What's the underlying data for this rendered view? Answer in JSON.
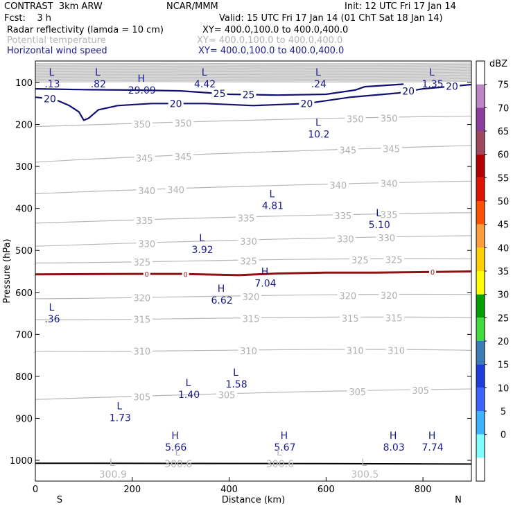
{
  "header": {
    "model": "CONTRAST  3km ARW",
    "org": "NCAR/MMM",
    "init": "Init: 12 UTC Fri 17 Jan 14",
    "fcst": "Fcst:    3 h",
    "valid": "Valid: 15 UTC Fri 17 Jan 14 (01 ChT Sat 18 Jan 14)",
    "fields": [
      {
        "name": "Radar reflectivity (lamda = 10 cm)",
        "xy": "XY= 400.0,100.0 to 400.0,400.0",
        "color": "#000000"
      },
      {
        "name": "Potential temperature",
        "xy": "XY= 400.0,100.0 to 400.0,400.0",
        "color": "#b4b4b4"
      },
      {
        "name": "Horizontal wind speed",
        "xy": "XY= 400.0,100.0 to 400.0,400.0",
        "color": "#1a1a8c"
      }
    ]
  },
  "chart_data": {
    "type": "cross-section",
    "xlabel": "Distance (km)",
    "ylabel": "Pressure (hPa)",
    "xlim": [
      0,
      900
    ],
    "ylim": [
      1050,
      50
    ],
    "x_ticks": [
      0,
      200,
      400,
      600,
      800
    ],
    "y_ticks": [
      100,
      200,
      300,
      400,
      500,
      600,
      700,
      800,
      900,
      1000
    ],
    "x_end_labels": {
      "left": "S",
      "right": "N"
    },
    "colorbar": {
      "unit": "dBZ",
      "levels": [
        "75",
        "70",
        "65",
        "60",
        "55",
        "50",
        "45",
        "40",
        "35",
        "30",
        "25",
        "20",
        "15",
        "10",
        "5",
        "0"
      ],
      "colors": [
        "#ffffff",
        "#c084c8",
        "#8c3c9c",
        "#a0485c",
        "#b40000",
        "#dc1400",
        "#ff5000",
        "#ff9c3c",
        "#ffd000",
        "#ffff00",
        "#00a000",
        "#40dc40",
        "#3c7cb4",
        "#1e3cdc",
        "#3c64ff",
        "#3cb4ff",
        "#80ffff",
        "#ffffff"
      ]
    },
    "theta_contours": [
      {
        "label": "350",
        "p_left": 205,
        "p_right": 180,
        "label_x": [
          220,
          305,
          660,
          730
        ]
      },
      {
        "label": "345",
        "p_left": 290,
        "p_right": 250,
        "label_x": [
          225,
          305,
          645,
          735
        ]
      },
      {
        "label": "340",
        "p_left": 365,
        "p_right": 335,
        "label_x": [
          230,
          290,
          625,
          730
        ]
      },
      {
        "label": "335",
        "p_left": 435,
        "p_right": 410,
        "label_x": [
          225,
          435,
          635,
          730
        ]
      },
      {
        "label": "330",
        "p_left": 490,
        "p_right": 465,
        "label_x": [
          230,
          440,
          640,
          725
        ]
      },
      {
        "label": "325",
        "p_left": 530,
        "p_right": 520,
        "label_x": [
          220,
          440,
          670,
          740
        ]
      },
      {
        "label": "320",
        "p_left": 615,
        "p_right": 605,
        "label_x": [
          220,
          445,
          645,
          730
        ]
      },
      {
        "label": "315",
        "p_left": 665,
        "p_right": 660,
        "label_x": [
          220,
          445,
          650,
          740
        ]
      },
      {
        "label": "310",
        "p_left": 740,
        "p_right": 738,
        "label_x": [
          220,
          440,
          660,
          745
        ]
      },
      {
        "label": "305",
        "p_left": 855,
        "p_right": 830,
        "label_x": [
          220,
          395,
          665,
          795
        ]
      }
    ],
    "freezing_level": {
      "label": "0",
      "points": [
        [
          0,
          557
        ],
        [
          200,
          556
        ],
        [
          300,
          556
        ],
        [
          420,
          559
        ],
        [
          500,
          555
        ],
        [
          600,
          553
        ],
        [
          700,
          553
        ],
        [
          900,
          550
        ]
      ],
      "label_x": [
        230,
        310,
        820
      ],
      "color": "#8c1414"
    },
    "ground_line": [
      [
        0,
        1007
      ],
      [
        600,
        1008
      ],
      [
        900,
        1009
      ]
    ],
    "wind_contours": [
      {
        "label": "20",
        "points": [
          [
            0,
            135
          ],
          [
            40,
            140
          ],
          [
            70,
            155
          ],
          [
            90,
            170
          ],
          [
            100,
            190
          ],
          [
            110,
            185
          ],
          [
            130,
            165
          ],
          [
            170,
            155
          ],
          [
            240,
            150
          ],
          [
            350,
            150
          ],
          [
            450,
            155
          ],
          [
            560,
            150
          ],
          [
            650,
            135
          ],
          [
            750,
            125
          ],
          [
            800,
            115
          ],
          [
            900,
            105
          ]
        ],
        "label_x": [
          30,
          290,
          560,
          770,
          860
        ]
      },
      {
        "label": "25",
        "points": [
          [
            0,
            115
          ],
          [
            100,
            117
          ],
          [
            200,
            118
          ],
          [
            300,
            120
          ],
          [
            400,
            128
          ],
          [
            500,
            130
          ],
          [
            600,
            128
          ],
          [
            660,
            118
          ],
          [
            680,
            110
          ],
          [
            760,
            104
          ]
        ],
        "label_x": [
          380,
          440
        ]
      }
    ],
    "extrema_navy": [
      {
        "type": "L",
        "value": ".13",
        "x": 35,
        "p": 90
      },
      {
        "type": "L",
        "value": ".82",
        "x": 130,
        "p": 90
      },
      {
        "type": "H",
        "value": "29.09",
        "x": 220,
        "p": 105
      },
      {
        "type": "L",
        "value": "4.42",
        "x": 350,
        "p": 90
      },
      {
        "type": "L",
        "value": ".24",
        "x": 585,
        "p": 90
      },
      {
        "type": "L",
        "value": "1.35",
        "x": 820,
        "p": 90
      },
      {
        "type": "L",
        "value": "10.2",
        "x": 585,
        "p": 210
      },
      {
        "type": "L",
        "value": "4.81",
        "x": 490,
        "p": 380
      },
      {
        "type": "L",
        "value": "5.10",
        "x": 710,
        "p": 425
      },
      {
        "type": "L",
        "value": "3.92",
        "x": 345,
        "p": 485
      },
      {
        "type": "H",
        "value": "7.04",
        "x": 475,
        "p": 565
      },
      {
        "type": "H",
        "value": "6.62",
        "x": 385,
        "p": 605
      },
      {
        "type": "L",
        "value": ".36",
        "x": 35,
        "p": 650
      },
      {
        "type": "L",
        "value": "1.58",
        "x": 415,
        "p": 805
      },
      {
        "type": "L",
        "value": "1.40",
        "x": 317,
        "p": 830
      },
      {
        "type": "L",
        "value": "1.73",
        "x": 175,
        "p": 885
      },
      {
        "type": "H",
        "value": "5.66",
        "x": 290,
        "p": 955
      },
      {
        "type": "H",
        "value": "5.67",
        "x": 515,
        "p": 955
      },
      {
        "type": "H",
        "value": "8.03",
        "x": 740,
        "p": 955
      },
      {
        "type": "H",
        "value": "7.74",
        "x": 820,
        "p": 955
      }
    ],
    "extrema_gray": [
      {
        "type": "L",
        "value": "300.9",
        "x": 160,
        "p": 1020
      },
      {
        "type": "L",
        "value": "300.6",
        "x": 295,
        "p": 995
      },
      {
        "type": "L",
        "value": "300.6",
        "x": 505,
        "p": 995
      },
      {
        "type": "L",
        "value": "300.5",
        "x": 680,
        "p": 1020
      }
    ],
    "tight_gray_band": {
      "p_top": 55,
      "p_bottom": 100
    }
  }
}
